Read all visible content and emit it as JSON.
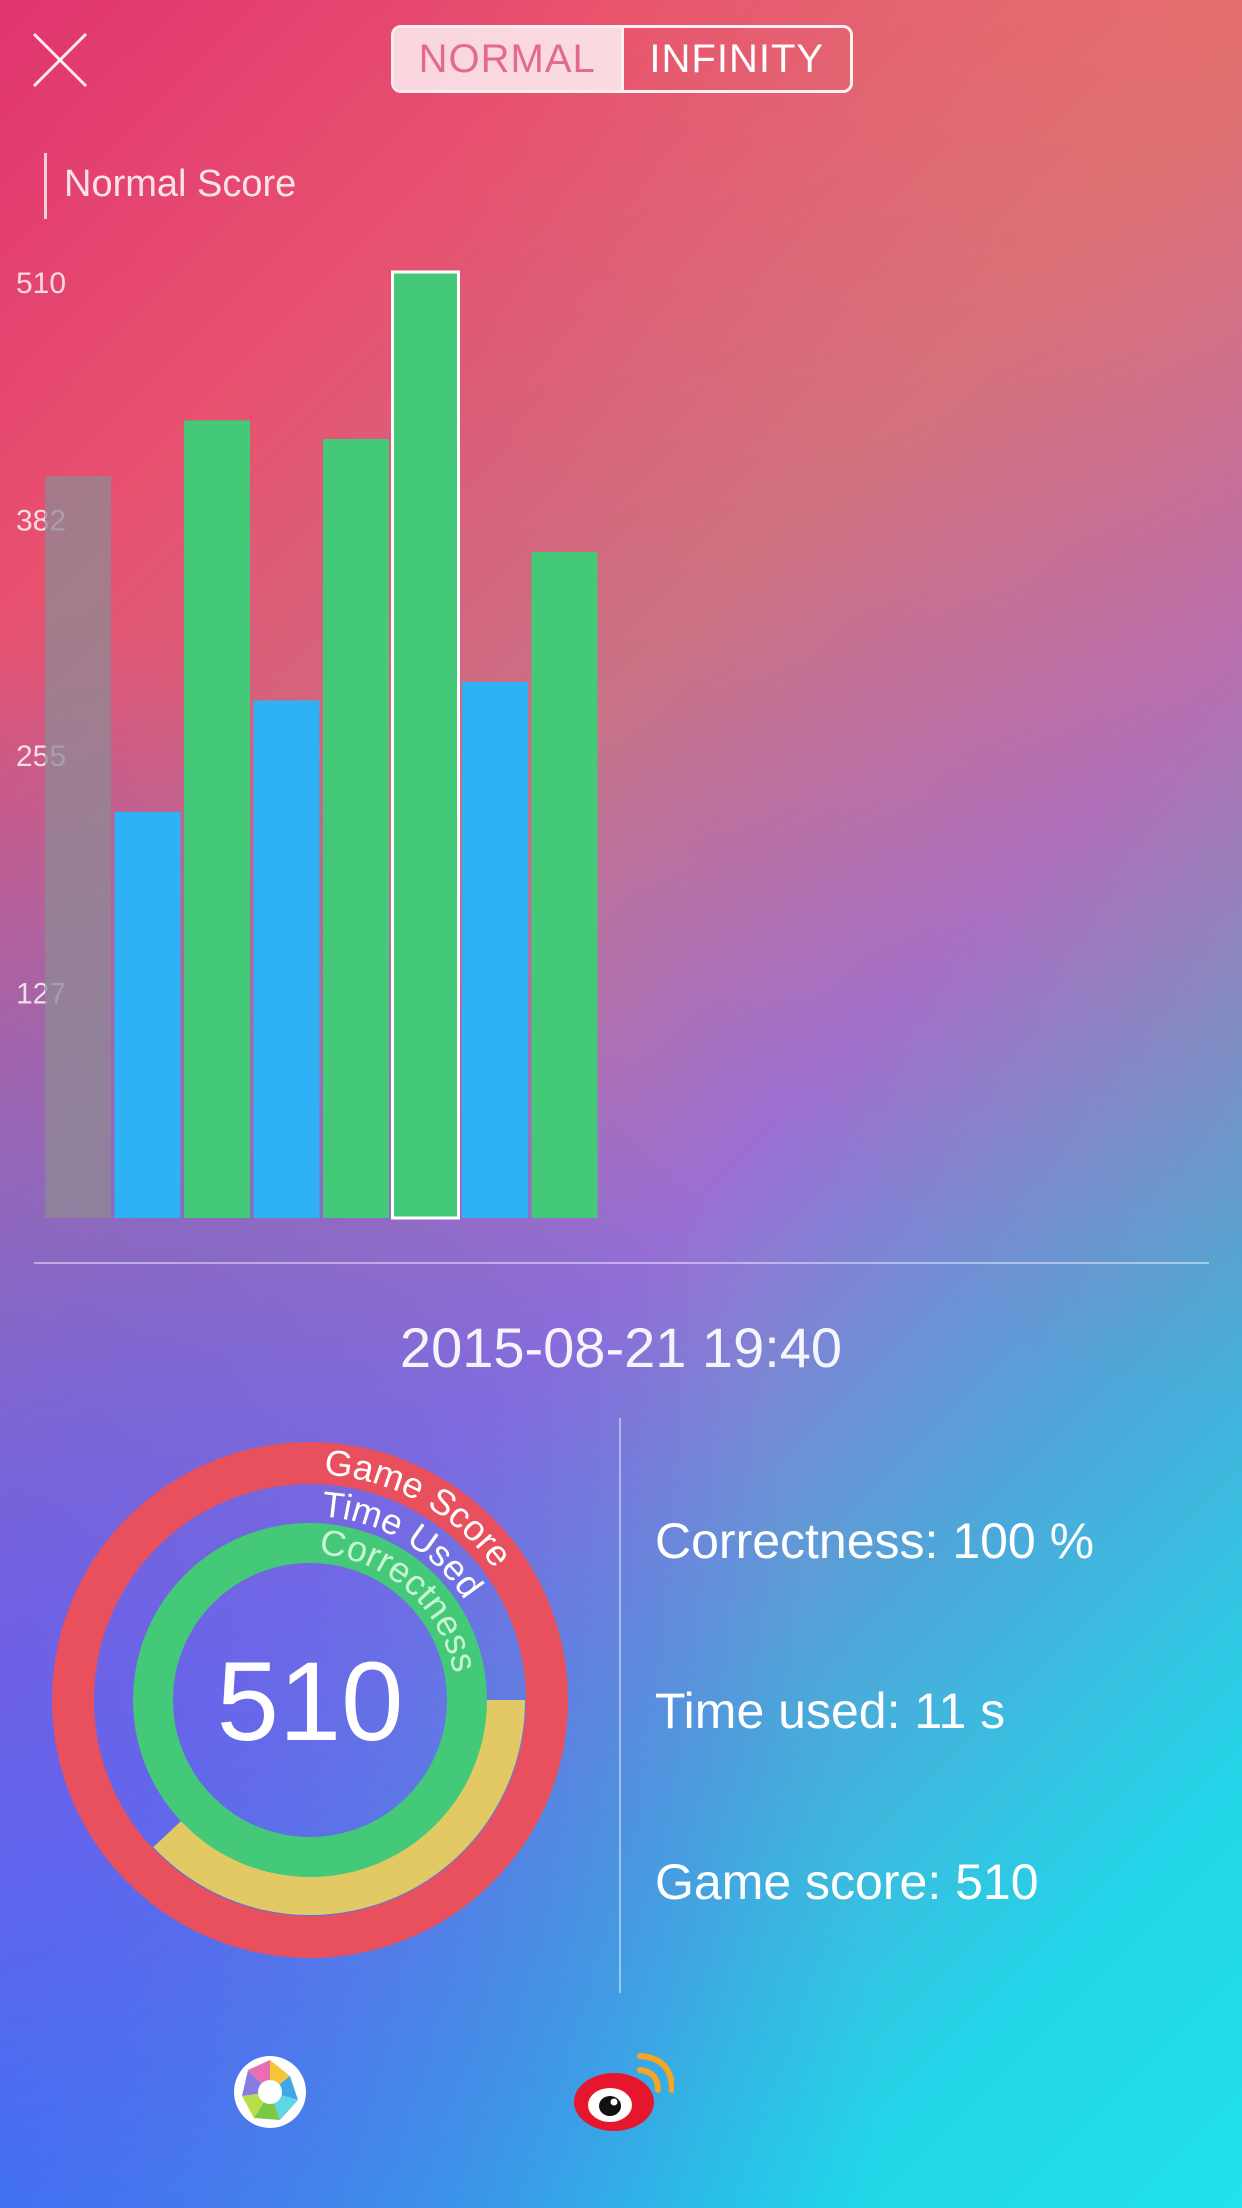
{
  "mode_switch": {
    "normal": "NORMAL",
    "infinity": "INFINITY",
    "selected": "NORMAL"
  },
  "section_title": "Normal Score",
  "chart_data": {
    "type": "bar",
    "title": "Normal Score",
    "y_ticks": [
      "510",
      "382",
      "255",
      "127"
    ],
    "ylim": [
      0,
      510
    ],
    "values": [
      400,
      219,
      430,
      279,
      420,
      510,
      289,
      359
    ],
    "bar_colors": [
      "gray",
      "blue",
      "green",
      "blue",
      "green",
      "green",
      "blue",
      "green"
    ],
    "selected_index": 5
  },
  "datetime": "2015-08-21  19:40",
  "ring": {
    "score": "510",
    "labels": [
      "Game Score",
      "Time Used",
      "Correctness"
    ],
    "correctness_fraction": 1.0,
    "time_used_fraction": 0.38,
    "game_score_fraction": 1.0
  },
  "stats": {
    "correctness": "Correctness: 100 %",
    "time_used": "Time used: 11 s",
    "game_score": "Game score: 510"
  },
  "colors": {
    "green": "#43c978",
    "blue": "#2fb1f6",
    "gray": "#8e8a94",
    "red": "#e8505e",
    "yellow": "#e2c964"
  },
  "icons": {
    "close": "close-icon",
    "camera_share": "camera-aperture-icon",
    "weibo_share": "weibo-icon"
  }
}
